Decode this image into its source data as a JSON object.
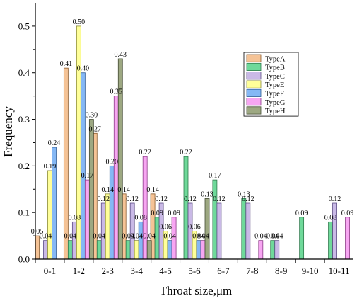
{
  "chart_data": {
    "type": "bar",
    "xlabel": "Throat size,μm",
    "ylabel": "Frequency",
    "ylim": [
      0,
      0.55
    ],
    "yticks": [
      "0.0",
      "0.1",
      "0.2",
      "0.3",
      "0.4",
      "0.5"
    ],
    "ytick_values": [
      0,
      0.1,
      0.2,
      0.3,
      0.4,
      0.5
    ],
    "legend_position": "top-right",
    "grid": false,
    "categories": [
      "0-1",
      "1-2",
      "2-3",
      "3-4",
      "4-5",
      "5-6",
      "6-7",
      "7-8",
      "8-9",
      "9-10",
      "10-11"
    ],
    "series": [
      {
        "name": "TypeA",
        "color": "#f5c396",
        "stroke": "#8a5a2b",
        "values": [
          0.05,
          0.41,
          0.27,
          0.14,
          0.14,
          null,
          null,
          null,
          null,
          null,
          null
        ],
        "labels": [
          "0.05",
          "0.41",
          "0.27",
          "0.14",
          "0.14",
          "",
          "",
          "",
          "",
          "",
          ""
        ]
      },
      {
        "name": "TypeB",
        "color": "#6fd99a",
        "stroke": "#2e7a4c",
        "values": [
          null,
          0.04,
          0.04,
          0.04,
          0.09,
          0.22,
          0.17,
          0.13,
          0.04,
          0.09,
          0.08
        ],
        "labels": [
          "",
          "0.04",
          "0.04",
          "0.04",
          "0.09",
          "0.22",
          "0.17",
          "0.13",
          "0.04",
          "0.09",
          "0.08"
        ]
      },
      {
        "name": "TypeC",
        "color": "#c9b9e6",
        "stroke": "#5d4d86",
        "values": [
          0.04,
          0.08,
          0.12,
          0.12,
          0.12,
          0.12,
          0.12,
          0.12,
          0.04,
          null,
          0.12
        ],
        "labels": [
          "0.04",
          "0.08",
          "0.12",
          "0.12",
          "0.12",
          "0.12",
          "0.12",
          "0.12",
          "0.04",
          "",
          "0.12"
        ]
      },
      {
        "name": "TypeE",
        "color": "#ffff99",
        "stroke": "#8c8c3a",
        "values": [
          0.19,
          0.5,
          0.14,
          0.04,
          0.06,
          0.06,
          null,
          null,
          null,
          null,
          null
        ],
        "labels": [
          "0.19",
          "0.50",
          "0.14",
          "0.04",
          "0.06",
          "0.06",
          "",
          "",
          "",
          "",
          ""
        ]
      },
      {
        "name": "TypeF",
        "color": "#85b8f5",
        "stroke": "#2e5c95",
        "values": [
          0.24,
          0.4,
          0.2,
          0.08,
          0.04,
          0.04,
          null,
          null,
          null,
          null,
          null
        ],
        "labels": [
          "0.24",
          "0.40",
          "0.20",
          "0.08",
          "0.04",
          "0.04",
          "",
          "",
          "",
          "",
          ""
        ]
      },
      {
        "name": "TypeG",
        "color": "#f7a6f2",
        "stroke": "#8c3a87",
        "values": [
          null,
          0.17,
          0.35,
          0.22,
          0.09,
          0.04,
          null,
          0.04,
          null,
          null,
          0.09
        ],
        "labels": [
          "",
          "0.17",
          "0.35",
          "0.22",
          "0.09",
          "0.04",
          "",
          "0.04",
          "",
          "",
          "0.09"
        ]
      },
      {
        "name": "TypeH",
        "color": "#9da882",
        "stroke": "#454d35",
        "values": [
          null,
          0.3,
          0.43,
          0.04,
          null,
          0.13,
          null,
          null,
          null,
          null,
          null
        ],
        "labels": [
          "",
          "0.30",
          "0.43",
          "0.04",
          "",
          "0.13",
          "",
          "",
          "",
          "",
          ""
        ]
      }
    ]
  }
}
